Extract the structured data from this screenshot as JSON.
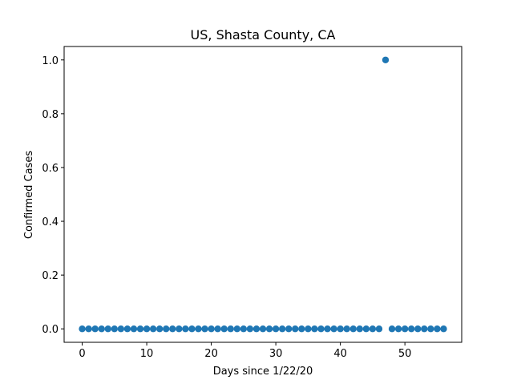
{
  "chart_data": {
    "type": "scatter",
    "title": "US, Shasta County, CA",
    "xlabel": "Days since 1/22/20",
    "ylabel": "Confirmed Cases",
    "xlim": [
      -2.8,
      58.8
    ],
    "ylim": [
      -0.05,
      1.05
    ],
    "xticks": [
      0,
      10,
      20,
      30,
      40,
      50
    ],
    "xtick_labels": [
      "0",
      "10",
      "20",
      "30",
      "40",
      "50"
    ],
    "yticks": [
      0.0,
      0.2,
      0.4,
      0.6,
      0.8,
      1.0
    ],
    "ytick_labels": [
      "0.0",
      "0.2",
      "0.4",
      "0.6",
      "0.8",
      "1.0"
    ],
    "grid": false,
    "series": [
      {
        "color": "#1f77b4",
        "x": [
          0,
          1,
          2,
          3,
          4,
          5,
          6,
          7,
          8,
          9,
          10,
          11,
          12,
          13,
          14,
          15,
          16,
          17,
          18,
          19,
          20,
          21,
          22,
          23,
          24,
          25,
          26,
          27,
          28,
          29,
          30,
          31,
          32,
          33,
          34,
          35,
          36,
          37,
          38,
          39,
          40,
          41,
          42,
          43,
          44,
          45,
          46,
          47,
          48,
          49,
          50,
          51,
          52,
          53,
          54,
          55,
          56
        ],
        "y": [
          0,
          0,
          0,
          0,
          0,
          0,
          0,
          0,
          0,
          0,
          0,
          0,
          0,
          0,
          0,
          0,
          0,
          0,
          0,
          0,
          0,
          0,
          0,
          0,
          0,
          0,
          0,
          0,
          0,
          0,
          0,
          0,
          0,
          0,
          0,
          0,
          0,
          0,
          0,
          0,
          0,
          0,
          0,
          0,
          0,
          0,
          0,
          1,
          0,
          0,
          0,
          0,
          0,
          0,
          0,
          0,
          0
        ]
      }
    ]
  }
}
